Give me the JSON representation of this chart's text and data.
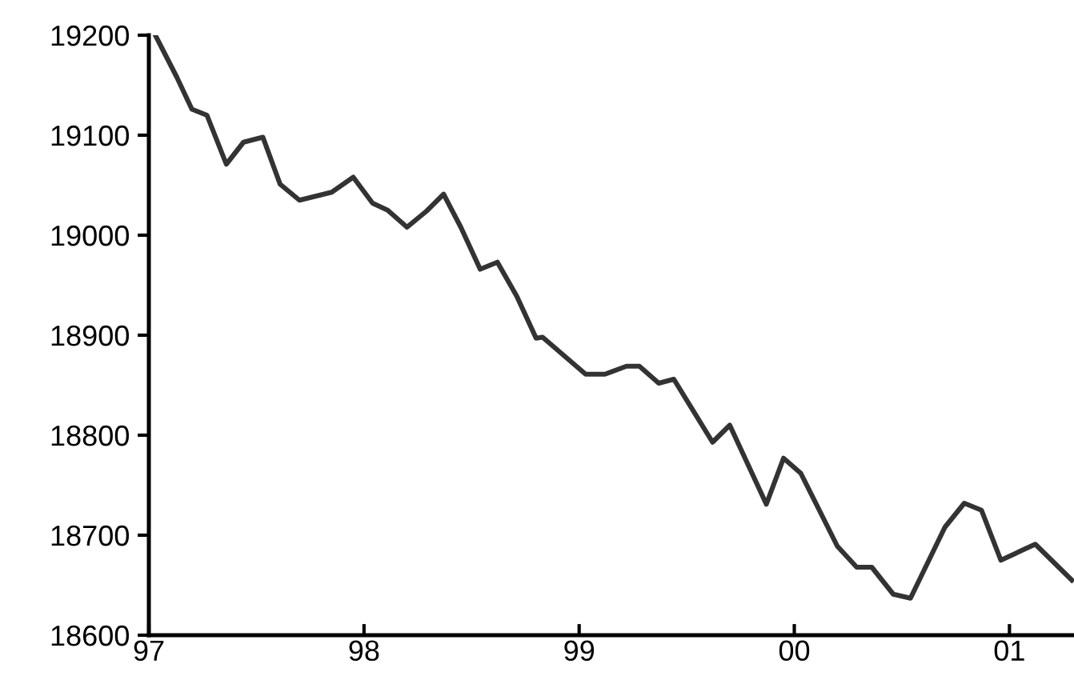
{
  "chart_data": {
    "type": "line",
    "x": [
      1997.03,
      1997.13,
      1997.2,
      1997.27,
      1997.36,
      1997.44,
      1997.53,
      1997.61,
      1997.7,
      1997.85,
      1997.95,
      1998.04,
      1998.11,
      1998.2,
      1998.29,
      1998.37,
      1998.45,
      1998.54,
      1998.62,
      1998.71,
      1998.8,
      1998.83,
      1999.03,
      1999.12,
      1999.22,
      1999.28,
      1999.37,
      1999.44,
      1999.62,
      1999.7,
      1999.87,
      1999.95,
      2000.03,
      2000.2,
      2000.29,
      2000.36,
      2000.46,
      2000.54,
      2000.7,
      2000.79,
      2000.87,
      2000.96,
      2001.12,
      2001.29
    ],
    "series": [
      {
        "color": "#333333",
        "values": [
          19200,
          19158,
          19126,
          19120,
          19071,
          19093,
          19098,
          19051,
          19035,
          19043,
          19058,
          19032,
          19025,
          19008,
          19024,
          19041,
          19008,
          18966,
          18973,
          18939,
          18897,
          18898,
          18861,
          18861,
          18869,
          18869,
          18852,
          18856,
          18793,
          18810,
          18731,
          18777,
          18762,
          18689,
          18668,
          18668,
          18641,
          18637,
          18708,
          18732,
          18725,
          18675,
          18691,
          18655
        ]
      }
    ],
    "xlim": [
      1997,
      2001.3
    ],
    "xticks": [
      {
        "value": 1997,
        "label": "97"
      },
      {
        "value": 1998,
        "label": "98"
      },
      {
        "value": 1999,
        "label": "99"
      },
      {
        "value": 2000,
        "label": "00"
      },
      {
        "value": 2001,
        "label": "01"
      }
    ],
    "ylim": [
      18600,
      19200
    ],
    "yticks": [
      18600,
      18700,
      18800,
      18900,
      19000,
      19100,
      19200
    ],
    "grid": false,
    "legend": false,
    "marker": "none",
    "line_style": "solid"
  }
}
